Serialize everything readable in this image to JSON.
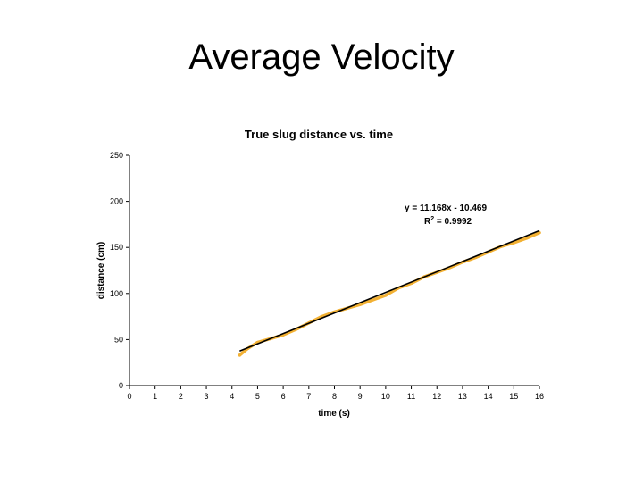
{
  "slide": {
    "title": "Average Velocity"
  },
  "chart_data": {
    "type": "scatter",
    "title": "True slug distance vs. time",
    "xlabel": "time (s)",
    "ylabel": "distance (cm)",
    "xlim": [
      0,
      16
    ],
    "ylim": [
      0,
      250
    ],
    "x_ticks": [
      0,
      1,
      2,
      3,
      4,
      5,
      6,
      7,
      8,
      9,
      10,
      11,
      12,
      13,
      14,
      15,
      16
    ],
    "y_ticks": [
      0,
      50,
      100,
      150,
      200,
      250
    ],
    "grid": false,
    "series": [
      {
        "name": "",
        "color": "#f2b134",
        "x": [
          4.3,
          4.6,
          5.0,
          5.5,
          6.0,
          6.5,
          7.0,
          7.5,
          8.0,
          8.5,
          9.0,
          9.5,
          10.0,
          10.5,
          11.0,
          11.5,
          12.0,
          12.5,
          13.0,
          13.5,
          14.0,
          14.5,
          15.0,
          15.5,
          16.0
        ],
        "y": [
          33,
          40,
          47,
          51,
          55,
          61,
          68,
          75,
          80,
          84,
          88,
          93,
          98,
          106,
          111,
          118,
          123,
          128,
          134,
          139,
          145,
          151,
          155,
          160,
          166
        ]
      }
    ],
    "trendline": {
      "color": "#000000",
      "slope": 11.168,
      "intercept": -10.469,
      "x_range": [
        4.3,
        16.0
      ],
      "equation": "y = 11.168x - 10.469",
      "r2_prefix": "R",
      "r2_sup": "2",
      "r2_value": " = 0.9992"
    }
  }
}
